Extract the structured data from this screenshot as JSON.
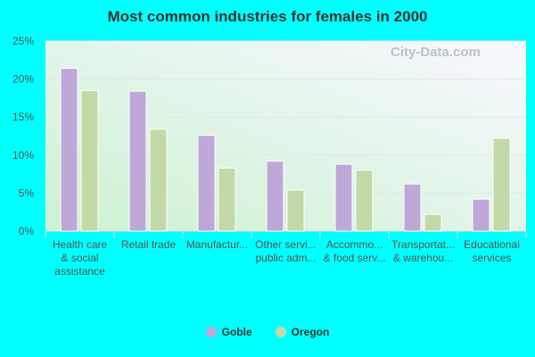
{
  "chart_data": {
    "type": "bar",
    "title": "Most common industries for females in 2000",
    "categories": [
      [
        "Health care",
        "& social",
        "assistance"
      ],
      [
        "Retail trade"
      ],
      [
        "Manufactur..."
      ],
      [
        "Other servi...",
        "public adm..."
      ],
      [
        "Accommo...",
        "& food serv..."
      ],
      [
        "Transportat...",
        "& warehou..."
      ],
      [
        "Educational",
        "services"
      ]
    ],
    "series": [
      {
        "name": "Goble",
        "color": "#bfa8d8",
        "values": [
          21.4,
          18.4,
          12.6,
          9.2,
          8.8,
          6.2,
          4.2
        ]
      },
      {
        "name": "Oregon",
        "color": "#c4d9a8",
        "values": [
          18.5,
          13.4,
          8.3,
          5.4,
          8.0,
          2.2,
          12.2
        ]
      }
    ],
    "yticks": [
      "0%",
      "5%",
      "10%",
      "15%",
      "20%",
      "25%"
    ],
    "ylim": [
      0,
      25
    ],
    "grid": true,
    "legend": "bottom"
  },
  "watermark": "City-Data.com"
}
